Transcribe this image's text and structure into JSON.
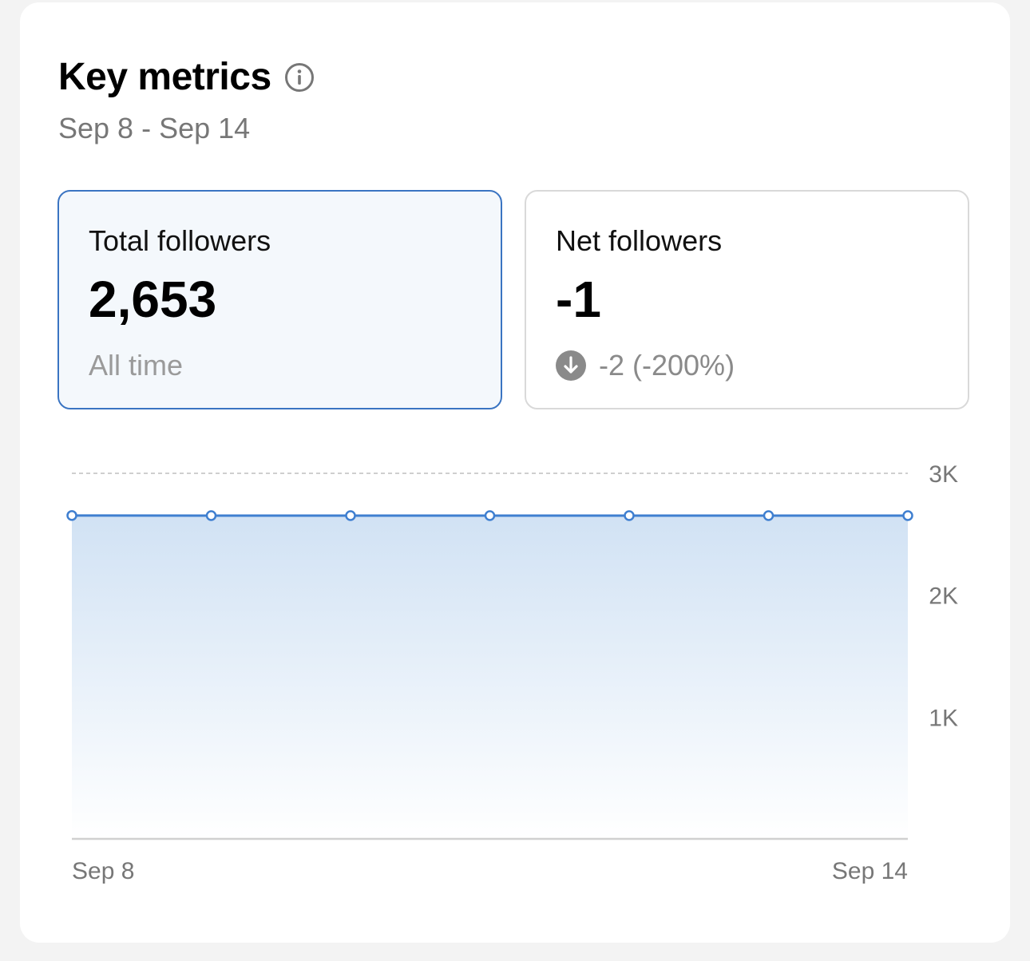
{
  "header": {
    "title": "Key metrics",
    "date_range": "Sep 8 - Sep 14",
    "info_icon": "info-circle-icon"
  },
  "metrics": [
    {
      "label": "Total followers",
      "value": "2,653",
      "sub": "All time",
      "selected": true
    },
    {
      "label": "Net followers",
      "value": "-1",
      "change": "-2 (-200%)",
      "change_icon": "arrow-down-circle-icon"
    }
  ],
  "colors": {
    "accent": "#3a74c2",
    "line": "#3f7fd0",
    "fill_top": "#d1e2f4",
    "grid": "#bfbfbf",
    "muted_text": "#777777"
  },
  "chart_data": {
    "type": "area",
    "x": [
      "Sep 8",
      "Sep 9",
      "Sep 10",
      "Sep 11",
      "Sep 12",
      "Sep 13",
      "Sep 14"
    ],
    "series": [
      {
        "values": [
          2654,
          2653,
          2653,
          2653,
          2653,
          2653,
          2653
        ]
      }
    ],
    "x_tick_labels": [
      "Sep 8",
      "Sep 14"
    ],
    "y_ticks": [
      1000,
      2000,
      3000
    ],
    "y_tick_labels": [
      "1K",
      "2K",
      "3K"
    ],
    "ylim": [
      0,
      3000
    ],
    "y_axis_side": "right",
    "grid": true,
    "legend": "none"
  }
}
